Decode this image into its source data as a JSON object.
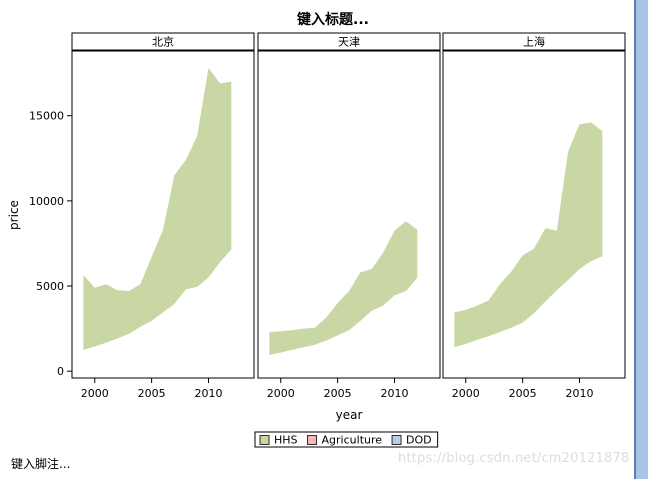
{
  "chart_data": {
    "type": "area",
    "title": "键入标题...",
    "footnote": "键入脚注...",
    "xlabel": "year",
    "ylabel": "price",
    "xlim": [
      1998,
      2014
    ],
    "ylim": [
      -400,
      18800
    ],
    "xticks": [
      2000,
      2005,
      2010
    ],
    "yticks": [
      0,
      5000,
      10000,
      15000
    ],
    "fill_color": "#c8d7a4",
    "legend_position": "bottom",
    "legend": [
      {
        "name": "HHS",
        "color": "#c8d7a4"
      },
      {
        "name": "Agriculture",
        "color": "#f2b6b6"
      },
      {
        "name": "DOD",
        "color": "#b8cde6"
      }
    ],
    "panels": [
      {
        "label": "北京",
        "x": [
          1999,
          2000,
          2001,
          2002,
          2003,
          2004,
          2005,
          2006,
          2007,
          2008,
          2009,
          2010,
          2011,
          2012
        ],
        "low": [
          1250,
          1450,
          1680,
          1920,
          2200,
          2600,
          2950,
          3450,
          3950,
          4800,
          4950,
          5500,
          6400,
          7150
        ],
        "high": [
          5650,
          4900,
          5100,
          4750,
          4700,
          5100,
          6700,
          8300,
          11500,
          12400,
          13800,
          17800,
          16900,
          17000
        ]
      },
      {
        "label": "天津",
        "x": [
          1999,
          2000,
          2001,
          2002,
          2003,
          2004,
          2005,
          2006,
          2007,
          2008,
          2009,
          2010,
          2011,
          2012
        ],
        "low": [
          950,
          1100,
          1250,
          1400,
          1550,
          1800,
          2100,
          2400,
          2950,
          3550,
          3850,
          4450,
          4700,
          5500
        ],
        "high": [
          2300,
          2350,
          2400,
          2500,
          2550,
          3150,
          4000,
          4700,
          5800,
          6000,
          6950,
          8250,
          8800,
          8300
        ]
      },
      {
        "label": "上海",
        "x": [
          1999,
          2000,
          2001,
          2002,
          2003,
          2004,
          2005,
          2006,
          2007,
          2008,
          2009,
          2010,
          2011,
          2012
        ],
        "low": [
          1400,
          1600,
          1850,
          2050,
          2300,
          2550,
          2850,
          3400,
          4100,
          4750,
          5350,
          6000,
          6450,
          6750
        ],
        "high": [
          3450,
          3600,
          3850,
          4150,
          5100,
          5850,
          6800,
          7200,
          8400,
          8250,
          12900,
          14500,
          14600,
          14100
        ]
      }
    ]
  },
  "watermark": "https://blog.csdn.net/cm20121878"
}
